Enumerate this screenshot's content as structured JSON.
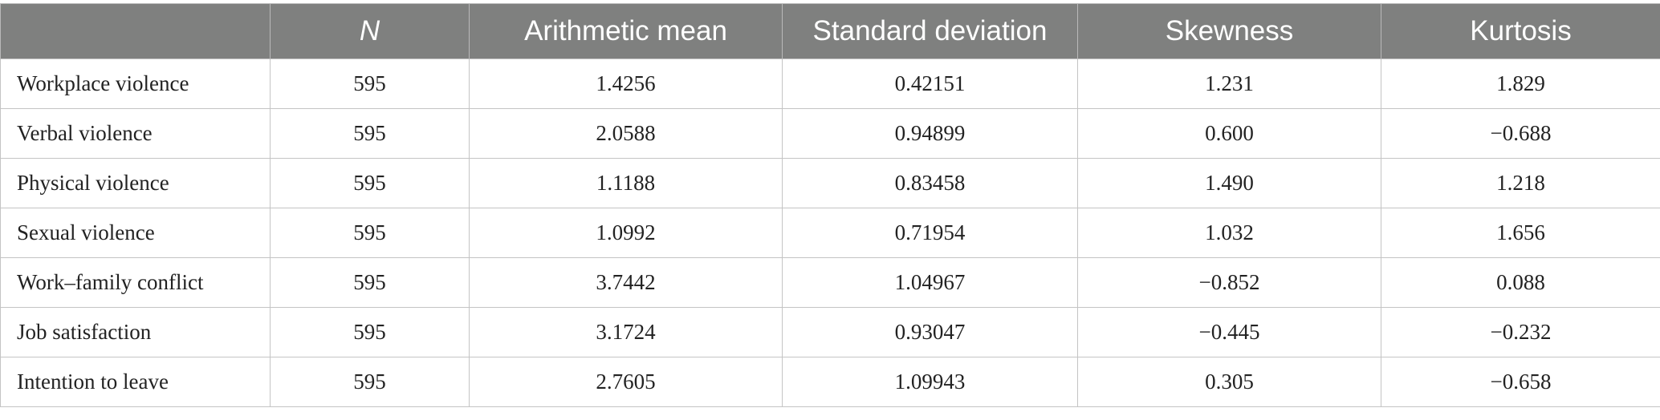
{
  "table": {
    "headers": [
      "",
      "N",
      "Arithmetic mean",
      "Standard deviation",
      "Skewness",
      "Kurtosis"
    ],
    "rows": [
      [
        "Workplace violence",
        "595",
        "1.4256",
        "0.42151",
        "1.231",
        "1.829"
      ],
      [
        "Verbal violence",
        "595",
        "2.0588",
        "0.94899",
        "0.600",
        "−0.688"
      ],
      [
        "Physical violence",
        "595",
        "1.1188",
        "0.83458",
        "1.490",
        "1.218"
      ],
      [
        "Sexual violence",
        "595",
        "1.0992",
        "0.71954",
        "1.032",
        "1.656"
      ],
      [
        "Work–family conflict",
        "595",
        "3.7442",
        "1.04967",
        "−0.852",
        "0.088"
      ],
      [
        "Job satisfaction",
        "595",
        "3.1724",
        "0.93047",
        "−0.445",
        "−0.232"
      ],
      [
        "Intention to leave",
        "595",
        "2.7605",
        "1.09943",
        "0.305",
        "−0.658"
      ]
    ]
  },
  "colors": {
    "header_background": "#7f807f",
    "header_text": "#ffffff",
    "grid_line": "#c4c4c4"
  }
}
